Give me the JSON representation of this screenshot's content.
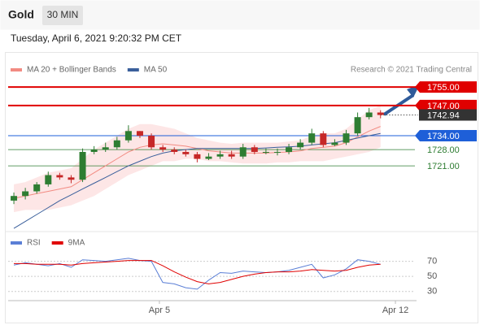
{
  "header": {
    "title": "Gold",
    "timeframe": "30 MIN",
    "timestamp": "Tuesday, April 6, 2021 9:20:32 PM CET",
    "credit": "Research © 2021 Trading Central"
  },
  "chart_data": [
    {
      "type": "candlestick",
      "x": [
        0,
        1,
        2,
        3,
        4,
        5,
        6,
        7,
        8,
        9,
        10,
        11,
        12,
        13,
        14,
        15,
        16,
        17,
        18,
        19,
        20,
        21,
        22,
        23,
        24,
        25,
        26,
        27,
        28,
        29,
        30,
        31,
        32
      ],
      "open": [
        1706,
        1708,
        1710,
        1713,
        1717,
        1716,
        1715,
        1727,
        1728,
        1729,
        1732,
        1736,
        1734,
        1729,
        1728,
        1727,
        1726,
        1724,
        1725,
        1726,
        1725,
        1729,
        1727,
        1727,
        1727,
        1729,
        1731,
        1735,
        1730,
        1731,
        1735,
        1742,
        1744
      ],
      "high": [
        1709.5,
        1711.5,
        1714,
        1718.5,
        1718,
        1717,
        1728.5,
        1729.5,
        1731,
        1733.5,
        1738.5,
        1736,
        1735,
        1730,
        1729,
        1728,
        1727,
        1726.5,
        1727.5,
        1727.5,
        1730.5,
        1730,
        1728.5,
        1728.5,
        1730.5,
        1732.5,
        1737,
        1736,
        1732.5,
        1736.5,
        1744,
        1746,
        1745
      ],
      "low": [
        1704.5,
        1706.5,
        1709,
        1712,
        1715,
        1713.5,
        1714,
        1726,
        1727,
        1728,
        1731,
        1733,
        1728,
        1727,
        1726,
        1725,
        1722.5,
        1723.5,
        1724,
        1724,
        1724,
        1726,
        1726,
        1725.5,
        1726,
        1728,
        1730,
        1729,
        1729.5,
        1730,
        1734,
        1741,
        1741.5
      ],
      "close": [
        1708,
        1710,
        1713,
        1717,
        1716,
        1715,
        1727,
        1728,
        1729,
        1732,
        1736,
        1734,
        1729,
        1728,
        1727,
        1726,
        1724,
        1725,
        1726,
        1725,
        1729,
        1727,
        1727,
        1727,
        1729,
        1731,
        1735,
        1730,
        1731,
        1735,
        1742,
        1744,
        1742.94
      ],
      "up_color": "#2e7d32",
      "down_color": "#c62828",
      "series": [
        {
          "name": "MA 20 + Bollinger Bands",
          "color": "#f28b82",
          "band_color": "#fde0e0",
          "values": [
            1707,
            1708,
            1709,
            1710,
            1711,
            1712,
            1715,
            1718,
            1721,
            1724,
            1727,
            1729,
            1730,
            1730.5,
            1730,
            1729.5,
            1728.5,
            1727.5,
            1727,
            1726.5,
            1726.5,
            1726.5,
            1726.5,
            1726.8,
            1727,
            1727.5,
            1728.5,
            1729,
            1729.5,
            1731,
            1733.5,
            1736,
            1738
          ],
          "band_upper": [
            1713,
            1714,
            1716,
            1718,
            1719,
            1720,
            1724,
            1728,
            1731,
            1734,
            1737,
            1739,
            1739,
            1738,
            1737,
            1735,
            1733,
            1732,
            1731,
            1730.5,
            1731,
            1731,
            1731,
            1731,
            1731.5,
            1732,
            1734,
            1735,
            1735,
            1737,
            1741,
            1745,
            1747
          ],
          "band_lower": [
            1701,
            1702,
            1702,
            1702,
            1703,
            1704,
            1706,
            1708,
            1711,
            1714,
            1717,
            1719,
            1721,
            1723,
            1723,
            1724,
            1724,
            1723,
            1723,
            1722.5,
            1722,
            1722,
            1722,
            1722.5,
            1722.5,
            1723,
            1723,
            1723,
            1724,
            1725,
            1726,
            1727,
            1729
          ]
        },
        {
          "name": "MA 50",
          "color": "#3a5f9b",
          "values": [
            1694,
            1697,
            1700,
            1703,
            1706,
            1708.5,
            1711,
            1713.5,
            1716,
            1718.5,
            1721,
            1723,
            1725,
            1726.5,
            1727.5,
            1728,
            1728.5,
            1728.5,
            1728.5,
            1728.5,
            1728.5,
            1728.5,
            1728.7,
            1729,
            1729.2,
            1729.5,
            1730,
            1730.5,
            1731,
            1732,
            1733,
            1734,
            1735
          ]
        }
      ],
      "levels": [
        {
          "value": 1755,
          "label": "1755.00",
          "color": "#e00000",
          "style": "box"
        },
        {
          "value": 1747,
          "label": "1747.00",
          "color": "#e00000",
          "style": "box"
        },
        {
          "value": 1742.94,
          "label": "1742.94",
          "color": "#333333",
          "style": "current"
        },
        {
          "value": 1734,
          "label": "1734.00",
          "color": "#1e5fd8",
          "style": "box"
        },
        {
          "value": 1728,
          "label": "1728.00",
          "color": "#2e7d32",
          "style": "text"
        },
        {
          "value": 1721,
          "label": "1721.00",
          "color": "#2e7d32",
          "style": "text"
        }
      ],
      "xlim": [
        -0.5,
        35
      ],
      "ylim": [
        1693,
        1768
      ]
    },
    {
      "type": "line",
      "x": [
        0,
        1,
        2,
        3,
        4,
        5,
        6,
        7,
        8,
        9,
        10,
        11,
        12,
        13,
        14,
        15,
        16,
        17,
        18,
        19,
        20,
        21,
        22,
        23,
        24,
        25,
        26,
        27,
        28,
        29,
        30,
        31,
        32
      ],
      "series": [
        {
          "name": "RSI",
          "color": "#5b7fd6",
          "values": [
            65,
            68,
            66,
            64,
            67,
            62,
            72,
            71,
            70,
            72,
            74,
            71,
            70,
            42,
            40,
            35,
            33,
            45,
            55,
            54,
            57,
            56,
            55,
            56,
            58,
            62,
            66,
            48,
            52,
            60,
            72,
            70,
            66
          ]
        },
        {
          "name": "9MA",
          "color": "#e00000",
          "values": [
            67,
            67,
            66,
            66,
            66,
            65,
            67,
            68,
            69,
            70,
            71,
            71,
            71,
            64,
            56,
            49,
            43,
            40,
            42,
            46,
            50,
            53,
            55,
            56,
            56,
            57,
            59,
            58,
            57,
            58,
            62,
            65,
            66
          ]
        }
      ],
      "xlim": [
        -0.5,
        35
      ],
      "ylim": [
        20,
        90
      ],
      "yticks": [
        70,
        50,
        30
      ],
      "xticks": [
        {
          "value": 12.7,
          "label": "Apr 5"
        },
        {
          "value": 33.3,
          "label": "Apr 12"
        }
      ]
    }
  ]
}
